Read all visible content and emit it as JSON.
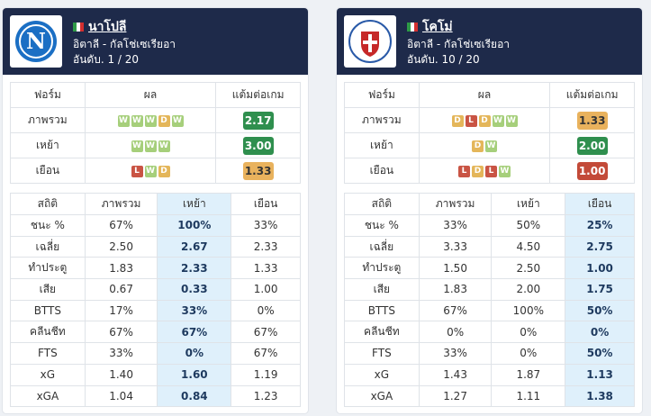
{
  "teams": [
    {
      "name": "นาโปลี",
      "league": "อิตาลี - กัลโช่เซเรียอา",
      "rank": "อันดับ. 1 / 20",
      "form_header": [
        "ฟอร์ม",
        "ผล",
        "แต้มต่อเกม"
      ],
      "form_rows": [
        {
          "label": "ภาพรวม",
          "results": [
            "W",
            "W",
            "W",
            "D",
            "W"
          ],
          "ppg": "2.17",
          "ppg_color": "green"
        },
        {
          "label": "เหย้า",
          "results": [
            "W",
            "W",
            "W"
          ],
          "ppg": "3.00",
          "ppg_color": "green"
        },
        {
          "label": "เยือน",
          "results": [
            "L",
            "W",
            "D"
          ],
          "ppg": "1.33",
          "ppg_color": "orange"
        }
      ],
      "stats_header": [
        "สถิติ",
        "ภาพรวม",
        "เหย้า",
        "เยือน"
      ],
      "highlight_col": 2,
      "stats_rows": [
        [
          "ชนะ %",
          "67%",
          "100%",
          "33%"
        ],
        [
          "เฉลี่ย",
          "2.50",
          "2.67",
          "2.33"
        ],
        [
          "ทำประตู",
          "1.83",
          "2.33",
          "1.33"
        ],
        [
          "เสีย",
          "0.67",
          "0.33",
          "1.00"
        ],
        [
          "BTTS",
          "17%",
          "33%",
          "0%"
        ],
        [
          "คลีนชีท",
          "67%",
          "67%",
          "67%"
        ],
        [
          "FTS",
          "33%",
          "0%",
          "67%"
        ],
        [
          "xG",
          "1.40",
          "1.60",
          "1.19"
        ],
        [
          "xGA",
          "1.04",
          "0.84",
          "1.23"
        ]
      ]
    },
    {
      "name": "โคโม่",
      "league": "อิตาลี - กัลโช่เซเรียอา",
      "rank": "อันดับ. 10 / 20",
      "form_header": [
        "ฟอร์ม",
        "ผล",
        "แต้มต่อเกม"
      ],
      "form_rows": [
        {
          "label": "ภาพรวม",
          "results": [
            "D",
            "L",
            "D",
            "W",
            "W"
          ],
          "ppg": "1.33",
          "ppg_color": "orange"
        },
        {
          "label": "เหย้า",
          "results": [
            "D",
            "W"
          ],
          "ppg": "2.00",
          "ppg_color": "green"
        },
        {
          "label": "เยือน",
          "results": [
            "L",
            "D",
            "L",
            "W"
          ],
          "ppg": "1.00",
          "ppg_color": "red"
        }
      ],
      "stats_header": [
        "สถิติ",
        "ภาพรวม",
        "เหย้า",
        "เยือน"
      ],
      "highlight_col": 3,
      "stats_rows": [
        [
          "ชนะ %",
          "33%",
          "50%",
          "25%"
        ],
        [
          "เฉลี่ย",
          "3.33",
          "4.50",
          "2.75"
        ],
        [
          "ทำประตู",
          "1.50",
          "2.50",
          "1.00"
        ],
        [
          "เสีย",
          "1.83",
          "2.00",
          "1.75"
        ],
        [
          "BTTS",
          "67%",
          "100%",
          "50%"
        ],
        [
          "คลีนชีท",
          "0%",
          "0%",
          "0%"
        ],
        [
          "FTS",
          "33%",
          "0%",
          "50%"
        ],
        [
          "xG",
          "1.43",
          "1.87",
          "1.13"
        ],
        [
          "xGA",
          "1.27",
          "1.11",
          "1.38"
        ]
      ]
    }
  ],
  "colors": {
    "header_bg": "#1e2a4a",
    "win": "#a6cf7b",
    "draw": "#e4b65a",
    "loss": "#c95444",
    "ppg_green": "#2f8f4e",
    "ppg_orange": "#e9b25d",
    "ppg_red": "#c34a38",
    "highlight": "#dff0fb"
  },
  "icons": {
    "flag": "italy-flag-icon",
    "left_logo": "napoli-crest-icon",
    "right_logo": "como-crest-icon"
  }
}
